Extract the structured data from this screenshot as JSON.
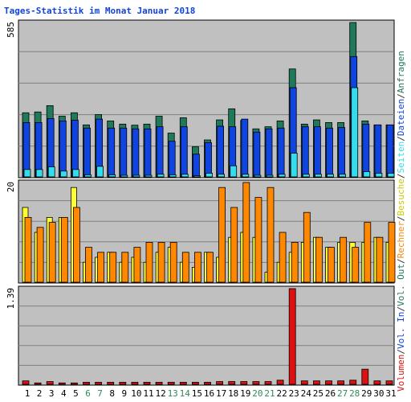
{
  "chart_data": {
    "type": "bar",
    "title": "Tages-Statistik im Monat Januar 2018",
    "categories": [
      "1",
      "2",
      "3",
      "4",
      "5",
      "6",
      "7",
      "8",
      "9",
      "10",
      "11",
      "12",
      "13",
      "14",
      "15",
      "16",
      "17",
      "18",
      "19",
      "20",
      "21",
      "22",
      "23",
      "24",
      "25",
      "26",
      "27",
      "28",
      "29",
      "30",
      "31"
    ],
    "weekend_days": [
      "6",
      "7",
      "13",
      "14",
      "20",
      "21",
      "27",
      "28"
    ],
    "panels": [
      {
        "id": "top",
        "ylabel_top": "585",
        "ylim": [
          0,
          585
        ],
        "series": [
          {
            "name": "Anfragen",
            "color": "#1f7a5a",
            "values": [
              243,
              246,
              270,
              230,
              243,
              197,
              236,
              212,
              200,
              196,
              200,
              230,
              166,
              224,
              114,
              140,
              216,
              258,
              214,
              182,
              190,
              212,
              409,
              200,
              216,
              206,
              206,
              585,
              212,
              197,
              197
            ]
          },
          {
            "name": "Dateien",
            "color": "#1044e0",
            "values": [
              206,
              206,
              221,
              212,
              215,
              185,
              219,
              185,
              185,
              182,
              182,
              190,
              135,
              190,
              86,
              130,
              192,
              190,
              219,
              170,
              182,
              185,
              338,
              190,
              190,
              185,
              187,
              456,
              200,
              197,
              197
            ]
          },
          {
            "name": "Seiten",
            "color": "#33ddee",
            "values": [
              28,
              28,
              38,
              22,
              28,
              8,
              40,
              8,
              6,
              6,
              6,
              10,
              8,
              10,
              4,
              14,
              10,
              42,
              10,
              6,
              6,
              10,
              90,
              10,
              10,
              10,
              10,
              338,
              20,
              14,
              14
            ]
          }
        ]
      },
      {
        "id": "middle",
        "ylabel_top": "20",
        "ylim": [
          0,
          20
        ],
        "series": [
          {
            "name": "Besuche",
            "color": "#ffff33",
            "values": [
              15,
              10,
              13,
              13,
              19,
              4,
              5,
              6,
              4,
              5,
              4,
              6,
              7,
              4,
              3,
              6,
              5,
              9,
              10,
              9,
              2,
              4,
              6,
              8,
              9,
              7,
              8,
              8,
              8,
              9,
              8
            ]
          },
          {
            "name": "Rechner",
            "color": "#ff8800",
            "values": [
              13,
              11,
              12,
              13,
              15,
              7,
              6,
              6,
              6,
              7,
              8,
              8,
              8,
              6,
              6,
              6,
              19,
              15,
              20,
              17,
              19,
              10,
              8,
              14,
              9,
              7,
              9,
              7,
              12,
              9,
              12
            ]
          }
        ]
      },
      {
        "id": "bottom",
        "ylabel_top": "1.39",
        "ylim": [
          0,
          1.39
        ],
        "series": [
          {
            "name": "Volumen",
            "color": "#dd1111",
            "values": [
              0.05,
              0.02,
              0.04,
              0.02,
              0.02,
              0.03,
              0.03,
              0.03,
              0.03,
              0.03,
              0.03,
              0.03,
              0.03,
              0.03,
              0.03,
              0.03,
              0.04,
              0.04,
              0.04,
              0.04,
              0.04,
              0.06,
              1.39,
              0.05,
              0.05,
              0.05,
              0.05,
              0.06,
              0.22,
              0.05,
              0.05
            ]
          }
        ]
      }
    ],
    "right_legend": [
      {
        "text": "Volumen",
        "color": "#dd1111"
      },
      {
        "text": "/",
        "color": "#333333"
      },
      {
        "text": "Vol. In",
        "color": "#1044e0"
      },
      {
        "text": "/",
        "color": "#333333"
      },
      {
        "text": "Vol. Out",
        "color": "#1f7a5a"
      },
      {
        "text": "/",
        "color": "#333333"
      },
      {
        "text": "Rechner",
        "color": "#ff8800"
      },
      {
        "text": "/",
        "color": "#333333"
      },
      {
        "text": "Besuche",
        "color": "#cccc00"
      },
      {
        "text": "/",
        "color": "#333333"
      },
      {
        "text": "Seiten",
        "color": "#33ddee"
      },
      {
        "text": "/",
        "color": "#333333"
      },
      {
        "text": "Dateien",
        "color": "#1044e0"
      },
      {
        "text": "/",
        "color": "#333333"
      },
      {
        "text": "Anfragen",
        "color": "#1f7a5a"
      }
    ],
    "colors": {
      "title": "#1044e0",
      "plot_bg": "#c0c0c0",
      "grid": "#808080",
      "weekday_label": "#000000",
      "weekend_label": "#2e8b57"
    },
    "grid": true
  }
}
